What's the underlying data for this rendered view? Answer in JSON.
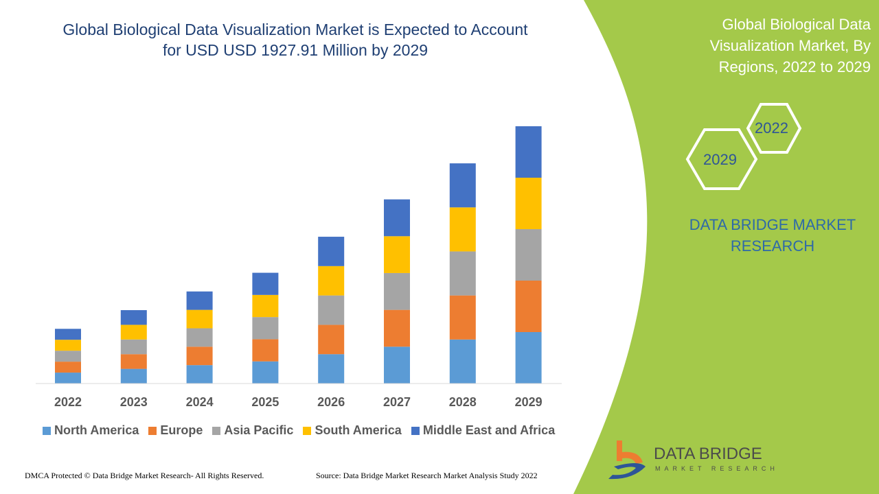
{
  "chart_data": {
    "type": "bar",
    "stacked": true,
    "title": "Global Biological Data Visualization Market is Expected to Account for USD USD 1927.91 Million by 2029",
    "categories": [
      "2022",
      "2023",
      "2024",
      "2025",
      "2026",
      "2027",
      "2028",
      "2029"
    ],
    "series": [
      {
        "name": "North America",
        "color": "#5b9bd5",
        "values": [
          82,
          110,
          138,
          166,
          220,
          276,
          330,
          385.6
        ]
      },
      {
        "name": "Europe",
        "color": "#ed7d31",
        "values": [
          82,
          110,
          138,
          166,
          220,
          276,
          330,
          385.6
        ]
      },
      {
        "name": "Asia Pacific",
        "color": "#a5a5a5",
        "values": [
          82,
          110,
          138,
          166,
          220,
          276,
          330,
          385.6
        ]
      },
      {
        "name": "South America",
        "color": "#ffc000",
        "values": [
          82,
          110,
          138,
          166,
          220,
          276,
          330,
          385.6
        ]
      },
      {
        "name": "Middle East and Africa",
        "color": "#4472c4",
        "values": [
          82,
          110,
          138,
          166,
          220,
          276,
          330,
          385.6
        ]
      }
    ],
    "xlabel": "",
    "ylabel": "",
    "ylim": [
      0,
      2000
    ],
    "grid": false,
    "legend": "bottom"
  },
  "side_panel": {
    "title": "Global Biological Data Visualization Market, By Regions, 2022 to 2029",
    "hex_year_1": "2022",
    "hex_year_2": "2029",
    "brand": "DATA BRIDGE MARKET RESEARCH",
    "color": "#a4c94a"
  },
  "logo": {
    "name": "DATA BRIDGE",
    "sub": "MARKET RESEARCH"
  },
  "footer": {
    "copyright": "DMCA Protected © Data Bridge Market Research- All Rights Reserved.",
    "source": "Source: Data Bridge Market Research Market Analysis Study 2022"
  }
}
